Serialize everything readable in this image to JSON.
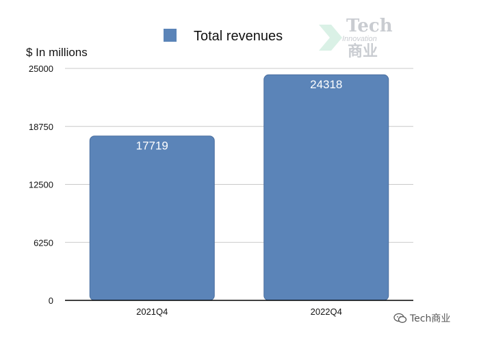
{
  "chart_data": {
    "type": "bar",
    "categories": [
      "2021Q4",
      "2022Q4"
    ],
    "series": [
      {
        "name": "Total revenues",
        "values": [
          17719,
          24318
        ]
      }
    ],
    "ylabel": "$ In millions",
    "ylim": [
      0,
      25000
    ],
    "yticks": [
      0,
      6250,
      12500,
      18750,
      25000
    ],
    "grid": true,
    "legend_position": "top",
    "bar_color": "#5b84b8",
    "data_labels": [
      "17719",
      "24318"
    ]
  },
  "watermark": {
    "brand_en": "Tech",
    "brand_sub": "Innovation",
    "brand_cn": "商业",
    "logo_icon": "chevron-arrow-icon"
  },
  "footer": {
    "wechat_icon": "wechat-icon",
    "account": "Tech商业"
  }
}
